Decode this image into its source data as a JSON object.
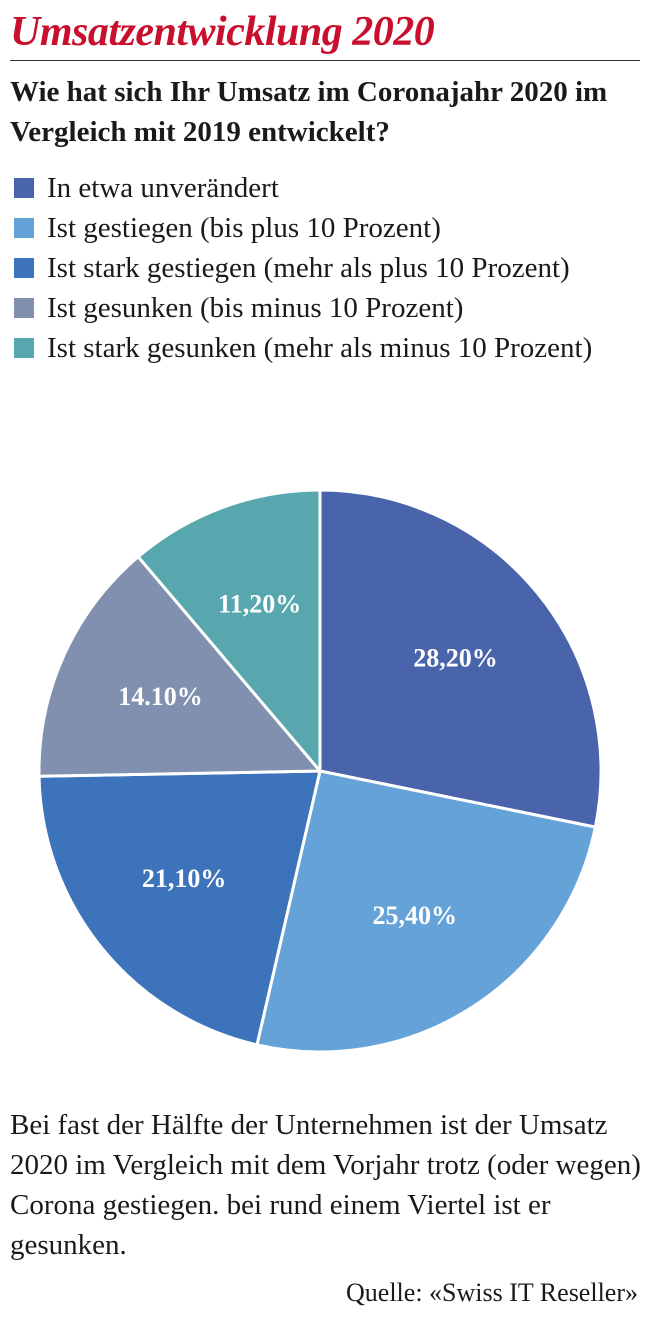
{
  "header": {
    "title": "Umsatzentwicklung 2020",
    "question": "Wie hat sich Ihr Umsatz im Coronajahr 2020 im Vergleich mit 2019 entwickelt?"
  },
  "chart_data": {
    "type": "pie",
    "start_angle_deg": 0,
    "direction": "clockwise",
    "slices": [
      {
        "name": "In etwa unverändert",
        "value": 28.2,
        "label": "28,20%",
        "color": "#4a64ac"
      },
      {
        "name": "Ist gestiegen (bis plus 10 Prozent)",
        "value": 25.4,
        "label": "25,40%",
        "color": "#64a2d8"
      },
      {
        "name": "Ist stark gestiegen (mehr als plus 10 Prozent)",
        "value": 21.1,
        "label": "21,10%",
        "color": "#3c73bb"
      },
      {
        "name": "Ist gesunken (bis minus 10 Prozent)",
        "value": 14.1,
        "label": "14.10%",
        "color": "#8190ae"
      },
      {
        "name": "Ist stark gesunken (mehr als minus 10 Prozent)",
        "value": 11.2,
        "label": "11,20%",
        "color": "#59a7ae"
      }
    ],
    "legend_position": "top"
  },
  "footer": {
    "caption": "Bei fast der Hälfte der Unternehmen ist der Umsatz 2020 im Vergleich mit dem Vorjahr trotz (oder wegen) Corona gestiegen. bei rund einem Viertel ist er gesunken.",
    "source": "Quelle: «Swiss IT Reseller»"
  }
}
